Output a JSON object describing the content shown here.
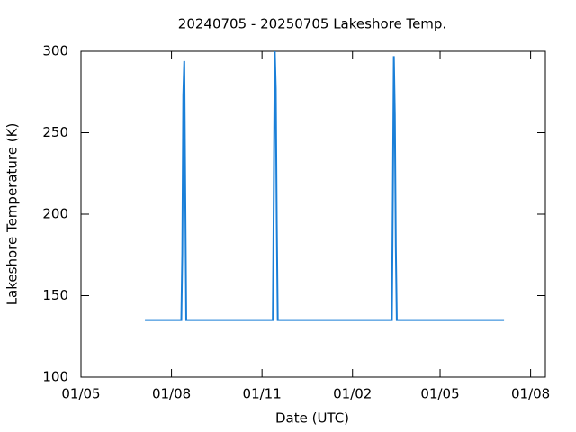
{
  "chart_data": {
    "type": "line",
    "title": "20240705 - 20250705 Lakeshore Temp.",
    "xlabel": "Date (UTC)",
    "ylabel": "Lakeshore Temperature (K)",
    "x": [
      "2024-07-05",
      "2024-08-11",
      "2024-08-12",
      "2024-08-13",
      "2024-08-14",
      "2024-08-15",
      "2024-08-16",
      "2024-11-12",
      "2024-11-13",
      "2024-11-14",
      "2024-11-15",
      "2024-11-16",
      "2024-11-17",
      "2025-03-13",
      "2025-03-14",
      "2025-03-15",
      "2025-03-16",
      "2025-03-17",
      "2025-03-18",
      "2025-07-05"
    ],
    "series": [
      {
        "color": "#1a7fd8",
        "values": [
          135,
          135,
          176,
          273,
          294,
          213,
          135,
          135,
          213,
          300,
          277,
          194,
          135,
          135,
          211,
          297,
          261,
          180,
          135,
          135
        ]
      }
    ],
    "xlim": [
      "2024-05-01",
      "2025-08-16"
    ],
    "xticks": [
      {
        "value": "2024-05-01",
        "label": "01/05"
      },
      {
        "value": "2024-08-01",
        "label": "01/08"
      },
      {
        "value": "2024-11-01",
        "label": "01/11"
      },
      {
        "value": "2025-02-01",
        "label": "01/02"
      },
      {
        "value": "2025-05-01",
        "label": "01/05"
      },
      {
        "value": "2025-08-01",
        "label": "01/08"
      }
    ],
    "ylim": [
      100,
      300
    ],
    "yticks": [
      100,
      150,
      200,
      250,
      300
    ]
  }
}
